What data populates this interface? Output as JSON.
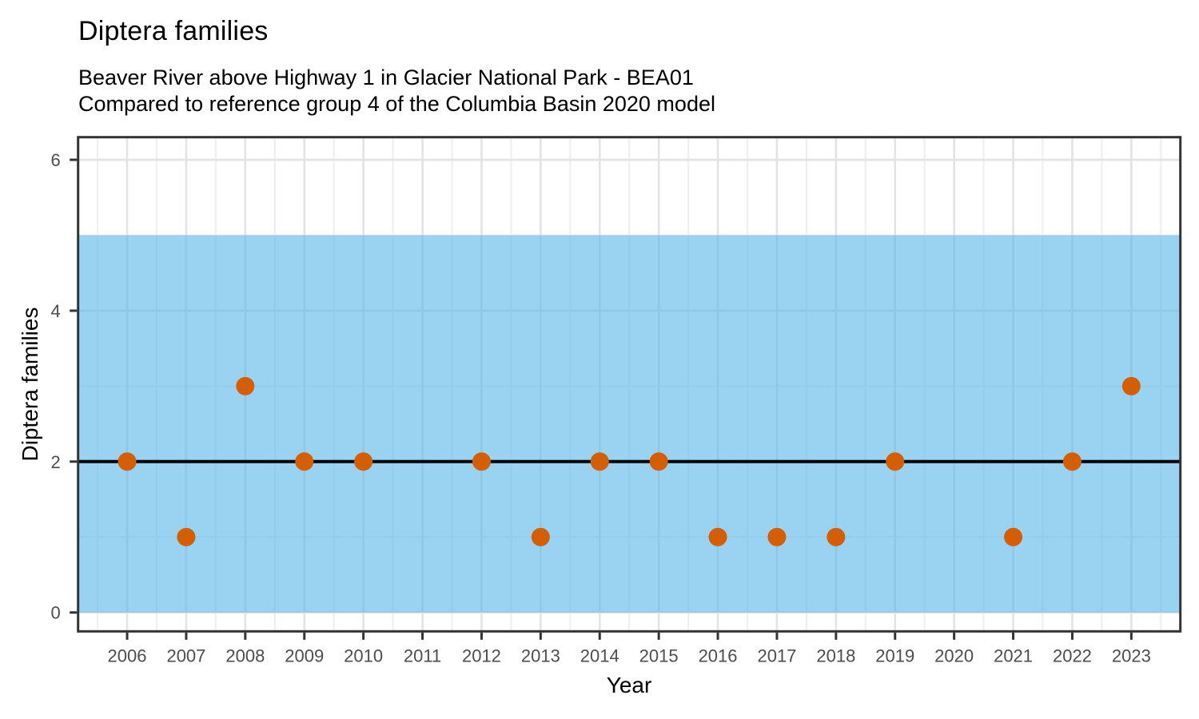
{
  "chart_data": {
    "type": "scatter",
    "title": "Diptera families",
    "subtitle_line1": "Beaver River above Highway 1 in Glacier National Park - BEA01",
    "subtitle_line2": "Compared to reference group 4 of the Columbia Basin 2020 model",
    "xlabel": "Year",
    "ylabel": "Diptera families",
    "points": [
      {
        "x": 2006,
        "y": 2
      },
      {
        "x": 2007,
        "y": 1
      },
      {
        "x": 2008,
        "y": 3
      },
      {
        "x": 2009,
        "y": 2
      },
      {
        "x": 2010,
        "y": 2
      },
      {
        "x": 2012,
        "y": 2
      },
      {
        "x": 2013,
        "y": 1
      },
      {
        "x": 2014,
        "y": 2
      },
      {
        "x": 2015,
        "y": 2
      },
      {
        "x": 2016,
        "y": 1
      },
      {
        "x": 2017,
        "y": 1
      },
      {
        "x": 2018,
        "y": 1
      },
      {
        "x": 2019,
        "y": 2
      },
      {
        "x": 2021,
        "y": 1
      },
      {
        "x": 2022,
        "y": 2
      },
      {
        "x": 2023,
        "y": 3
      }
    ],
    "x_ticks": [
      2006,
      2007,
      2008,
      2009,
      2010,
      2011,
      2012,
      2013,
      2014,
      2015,
      2016,
      2017,
      2018,
      2019,
      2020,
      2021,
      2022,
      2023
    ],
    "y_ticks": [
      0,
      2,
      4,
      6
    ],
    "y_minor_ticks": [
      1,
      3,
      5
    ],
    "xlim": [
      2005.17,
      2023.83
    ],
    "ylim": [
      -0.25,
      6.3
    ],
    "reference_band": {
      "ymin": 0,
      "ymax": 5,
      "fill": "#56B4E9",
      "opacity": 0.6
    },
    "reference_line": {
      "y": 2,
      "color": "#000000",
      "width": 4
    },
    "point_style": {
      "color": "#D55E00",
      "radius": 11.5
    },
    "grid": {
      "major_color": "#E3E3E3",
      "minor_color": "#EFEFEF",
      "major_width": 2.6,
      "minor_width": 2.2
    },
    "axis_style": {
      "border_color": "#333333",
      "tick_color": "#333333",
      "tick_label_color": "#4D4D4D",
      "tick_length": 9
    },
    "legend": "none"
  }
}
